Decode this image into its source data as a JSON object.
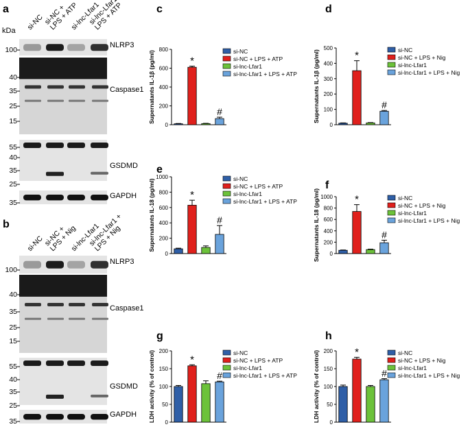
{
  "colors": {
    "si_nc": "#2f5fa7",
    "si_nc_lps": "#e0201c",
    "si_lnc": "#6cc23a",
    "si_lnc_lps": "#6aa3dc"
  },
  "blots": [
    {
      "panel_letter": "a",
      "kda_label": "kDa",
      "lanes": [
        "si-NC",
        "si-NC +\nLPS + ATP",
        "si-lnc-Lfar1",
        "si-lnc-Lfar1 +\nLPS + ATP"
      ],
      "markers": [
        "100",
        "40",
        "35",
        "25",
        "15",
        "55",
        "40",
        "35",
        "25",
        "35"
      ],
      "bands": [
        "NLRP3",
        "Caspase1",
        "GSDMD",
        "GAPDH"
      ]
    },
    {
      "panel_letter": "b",
      "kda_label": "",
      "lanes": [
        "si-NC",
        "si-NC +\nLPS + Nig",
        "si-lnc-Lfar1",
        "si-lnc-Lfar1 +\nLPS + Nig"
      ],
      "markers": [
        "100",
        "40",
        "35",
        "25",
        "15",
        "55",
        "40",
        "35",
        "25",
        "35"
      ],
      "bands": [
        "NLRP3",
        "Caspase1",
        "GSDMD",
        "GAPDH"
      ]
    }
  ],
  "chart_data": [
    {
      "panel_letter": "c",
      "type": "bar",
      "categories": [
        "si-NC",
        "si-NC + LPS + ATP",
        "si-lnc-Lfar1",
        "si-lnc-Lfar1 + LPS + ATP"
      ],
      "values": [
        10,
        610,
        12,
        65
      ],
      "errors": [
        3,
        12,
        3,
        15
      ],
      "annotations": [
        "",
        "*",
        "",
        "#"
      ],
      "ylabel": "Supernatants IL-1β (pg/ml)",
      "ylim": [
        0,
        800
      ],
      "yticks": [
        "0",
        "200",
        "400",
        "600",
        "800"
      ],
      "legend": [
        "si-NC",
        "si-NC + LPS + ATP",
        "si-lnc-Lfar1",
        "si-lnc-Lfar1 + LPS + ATP"
      ]
    },
    {
      "panel_letter": "d",
      "type": "bar",
      "categories": [
        "si-NC",
        "si-NC + LPS + Nig",
        "si-lnc-Lfar1",
        "si-lnc-Lfar1 + LPS + Nig"
      ],
      "values": [
        10,
        352,
        12,
        88
      ],
      "errors": [
        2,
        65,
        2,
        5
      ],
      "annotations": [
        "",
        "*",
        "",
        "#"
      ],
      "ylabel": "Supernatants IL-1β (pg/ml)",
      "ylim": [
        0,
        500
      ],
      "yticks": [
        "0",
        "100",
        "200",
        "300",
        "400",
        "500"
      ],
      "legend": [
        "si-NC",
        "si-NC + LPS + Nig",
        "si-lnc-Lfar1",
        "si-lnc-Lfar1 + LPS + Nig"
      ]
    },
    {
      "panel_letter": "e",
      "type": "bar",
      "categories": [
        "si-NC",
        "si-NC + LPS + ATP",
        "si-lnc-Lfar1",
        "si-lnc-Lfar1 + LPS + ATP"
      ],
      "values": [
        62,
        630,
        80,
        250
      ],
      "errors": [
        8,
        65,
        20,
        115
      ],
      "annotations": [
        "",
        "*",
        "",
        "#"
      ],
      "ylabel": "Supernatants IL-18 (pg/ml)",
      "ylim": [
        0,
        1000
      ],
      "yticks": [
        "0",
        "200",
        "400",
        "600",
        "800",
        "1000"
      ],
      "legend": [
        "si-NC",
        "si-NC + LPS + ATP",
        "si-lnc-Lfar1",
        "si-lnc-Lfar1 + LPS + ATP"
      ]
    },
    {
      "panel_letter": "f",
      "type": "bar",
      "categories": [
        "si-NC",
        "si-NC + LPS + Nig",
        "si-lnc-Lfar1",
        "si-lnc-Lfar1 + LPS + Nig"
      ],
      "values": [
        58,
        740,
        70,
        190
      ],
      "errors": [
        5,
        120,
        8,
        45
      ],
      "annotations": [
        "",
        "*",
        "",
        "#"
      ],
      "ylabel": "Supernatants IL-18 (pg/ml)",
      "ylim": [
        0,
        1000
      ],
      "yticks": [
        "0",
        "200",
        "400",
        "600",
        "800",
        "1000"
      ],
      "legend": [
        "si-NC",
        "si-NC + LPS + Nig",
        "si-lnc-Lfar1",
        "si-lnc-Lfar1 + LPS + Nig"
      ]
    },
    {
      "panel_letter": "g",
      "type": "bar",
      "categories": [
        "si-NC",
        "si-NC + LPS + ATP",
        "si-lnc-Lfar1",
        "si-lnc-Lfar1 + LPS + ATP"
      ],
      "values": [
        100,
        158,
        108,
        113
      ],
      "errors": [
        3,
        3,
        8,
        2
      ],
      "annotations": [
        "",
        "*",
        "",
        "#"
      ],
      "ylabel": "LDH activity (% of control)",
      "ylim": [
        0,
        200
      ],
      "yticks": [
        "0",
        "50",
        "100",
        "150",
        "200"
      ],
      "legend": [
        "si-NC",
        "si-NC + LPS + ATP",
        "si-lnc-Lfar1",
        "si-lnc-Lfar1 + LPS + ATP"
      ]
    },
    {
      "panel_letter": "h",
      "type": "bar",
      "categories": [
        "si-NC",
        "si-NC + LPS + Nig",
        "si-lnc-Lfar1",
        "si-lnc-Lfar1 + LPS + Nig"
      ],
      "values": [
        100,
        177,
        100,
        119
      ],
      "errors": [
        4,
        5,
        3,
        3
      ],
      "annotations": [
        "",
        "*",
        "",
        "#"
      ],
      "ylabel": "LDH activity (% of control)",
      "ylim": [
        0,
        200
      ],
      "yticks": [
        "0",
        "50",
        "100",
        "150",
        "200"
      ],
      "legend": [
        "si-NC",
        "si-NC + LPS + Nig",
        "si-lnc-Lfar1",
        "si-lnc-Lfar1 + LPS + Nig"
      ]
    }
  ]
}
